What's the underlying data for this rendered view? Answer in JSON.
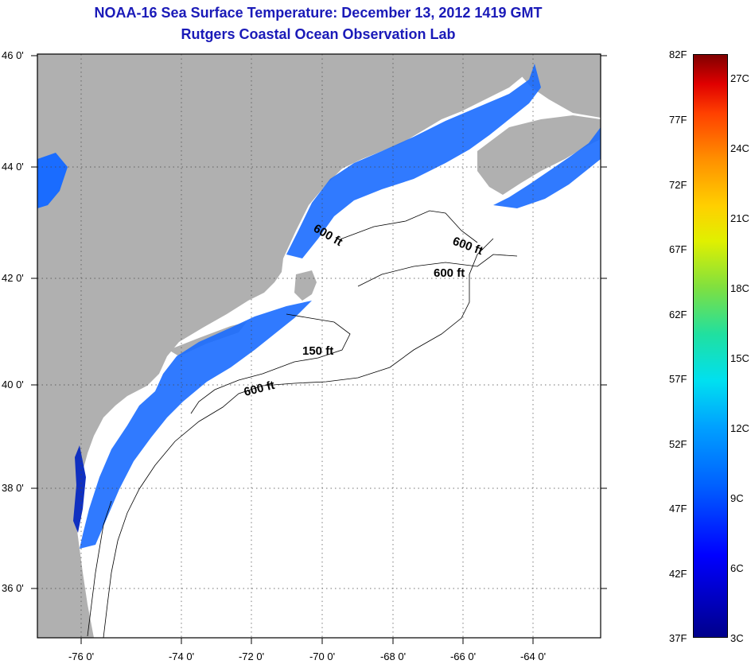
{
  "title_line1": "NOAA-16 Sea Surface Temperature:  December 13, 2012 1419 GMT",
  "title_line2": "Rutgers Coastal Ocean Observation Lab",
  "colors": {
    "land": "#b0b0b0",
    "ocean_no_data": "#ffffff",
    "sst_coastal": "#1a6cff",
    "sst_dark": "#1030c0",
    "title": "#1a1ab8"
  },
  "lat_labels": [
    "46 0'",
    "44 0'",
    "42 0'",
    "40 0'",
    "38 0'",
    "36 0'"
  ],
  "lon_labels": [
    "-76 0'",
    "-74 0'",
    "-72 0'",
    "-70 0'",
    "-68 0'",
    "-66 0'",
    "-64 0'"
  ],
  "contour_labels": [
    {
      "text": "600 ft"
    },
    {
      "text": "600 ft"
    },
    {
      "text": "600 ft"
    },
    {
      "text": "150 ft"
    },
    {
      "text": "600 ft"
    }
  ],
  "colorbar": {
    "fahrenheit": [
      "82F",
      "77F",
      "72F",
      "67F",
      "62F",
      "57F",
      "52F",
      "47F",
      "42F",
      "37F"
    ],
    "celsius": [
      "27C",
      "24C",
      "21C",
      "18C",
      "15C",
      "12C",
      "9C",
      "6C",
      "3C"
    ]
  }
}
